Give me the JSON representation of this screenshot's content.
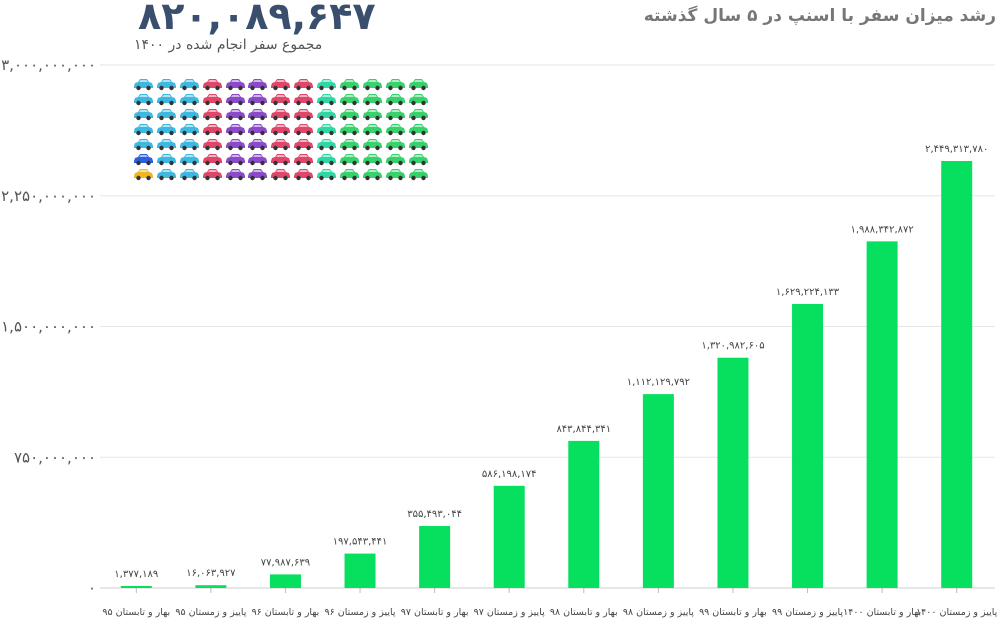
{
  "header": {
    "big_number": "۸۲۰,۰۸۹,۶۴۷",
    "big_caption": "مجموع سفر انجام شده در ۱۴۰۰",
    "title": "رشد میزان سفر با اسنپ در ۵ سال گذشته"
  },
  "icons": {
    "name": "car-icon",
    "rows": 7,
    "cols": 13,
    "colors": [
      "#3db8e0",
      "#e0466a",
      "#8a4ac9",
      "#2ed7a4",
      "#37d26b",
      "#2a5fe0",
      "#f1b51e"
    ]
  },
  "chart_data": {
    "type": "bar",
    "color": "#06e05e",
    "ylim": [
      0,
      3000000000
    ],
    "yticks": [
      0,
      750000000,
      1500000000,
      2250000000,
      3000000000
    ],
    "ytick_labels": [
      "۰",
      "۷۵۰,۰۰۰,۰۰۰",
      "۱,۵۰۰,۰۰۰,۰۰۰",
      "۲,۲۵۰,۰۰۰,۰۰۰",
      "۳,۰۰۰,۰۰۰,۰۰۰"
    ],
    "categories": [
      "بهار و تابستان ۹۵",
      "پاییز و زمستان ۹۵",
      "بهار و تابستان ۹۶",
      "پاییز و زمستان ۹۶",
      "بهار و تابستان ۹۷",
      "پاییز و زمستان ۹۷",
      "بهار و تابستان ۹۸",
      "پاییز و زمستان ۹۸",
      "بهار و تابستان ۹۹",
      "پاییز و زمستان ۹۹",
      "بهار و تابستان ۱۴۰۰",
      "پاییز و زمستان ۱۴۰۰"
    ],
    "values": [
      1377189,
      16063927,
      77987639,
      197543441,
      355493044,
      586198174,
      843844341,
      1112129792,
      1320982605,
      1629224133,
      1988342872,
      2449313780
    ],
    "value_labels": [
      "۱,۳۷۷,۱۸۹",
      "۱۶,۰۶۳,۹۲۷",
      "۷۷,۹۸۷,۶۳۹",
      "۱۹۷,۵۴۳,۴۴۱",
      "۳۵۵,۴۹۳,۰۴۴",
      "۵۸۶,۱۹۸,۱۷۴",
      "۸۴۳,۸۴۴,۳۴۱",
      "۱,۱۱۲,۱۲۹,۷۹۲",
      "۱,۳۲۰,۹۸۲,۶۰۵",
      "۱,۶۲۹,۲۲۴,۱۳۳",
      "۱,۹۸۸,۳۴۲,۸۷۲",
      "۲,۴۴۹,۳۱۳,۷۸۰"
    ]
  }
}
